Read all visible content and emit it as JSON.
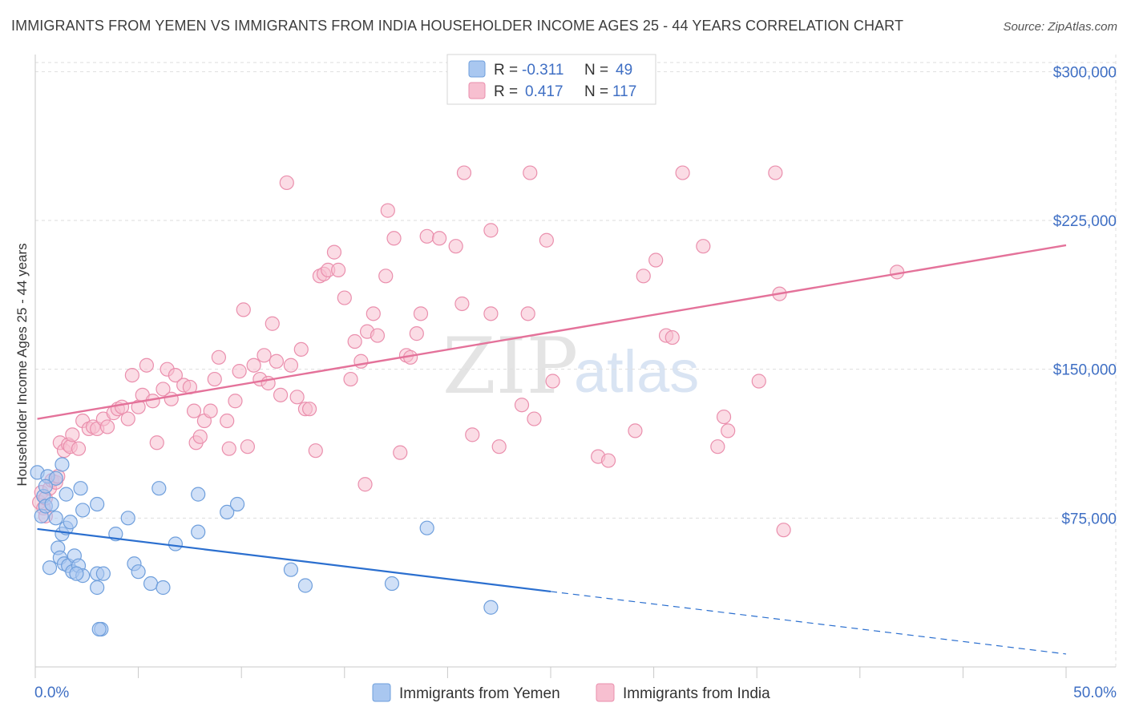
{
  "header": {
    "title": "IMMIGRANTS FROM YEMEN VS IMMIGRANTS FROM INDIA HOUSEHOLDER INCOME AGES 25 - 44 YEARS CORRELATION CHART",
    "source": "Source: ZipAtlas.com"
  },
  "watermark": {
    "zip": "ZIP",
    "atlas": "atlas"
  },
  "legend": {
    "r_label": "R =",
    "n_label": "N =",
    "yemen": {
      "r": "-0.311",
      "n": "49"
    },
    "india": {
      "r": "0.417",
      "n": "117"
    }
  },
  "colors": {
    "yemen_fill": "#a9c7f0",
    "yemen_stroke": "#6f9fdc",
    "yemen_line": "#2b6fcf",
    "india_fill": "#f7bfd0",
    "india_stroke": "#ea8fad",
    "india_line": "#e4729a",
    "grid": "#dedede",
    "tick_label": "#3f6fc4"
  },
  "chart_data": {
    "type": "scatter",
    "title": "IMMIGRANTS FROM YEMEN VS IMMIGRANTS FROM INDIA HOUSEHOLDER INCOME AGES 25 - 44 YEARS CORRELATION CHART",
    "xlabel": "",
    "ylabel": "Householder Income Ages 25 - 44 years",
    "xlim": [
      0,
      50
    ],
    "ylim": [
      0,
      307000
    ],
    "x_tick_labels": [
      "0.0%",
      "50.0%"
    ],
    "y_ticks": [
      75000,
      150000,
      225000,
      300000
    ],
    "y_tick_labels": [
      "$75,000",
      "$150,000",
      "$225,000",
      "$300,000"
    ],
    "grid": true,
    "legend_position": "top-center",
    "series": [
      {
        "name": "Immigrants from Yemen",
        "r": -0.311,
        "n": 49,
        "trend": {
          "x0": 0.1,
          "y0": 69500,
          "x_solid_end": 25.0,
          "y_solid_end": 38000,
          "x1": 50.0,
          "y1": 6500
        },
        "points": [
          [
            0.1,
            98000
          ],
          [
            0.3,
            76000
          ],
          [
            0.4,
            86000
          ],
          [
            0.5,
            81000
          ],
          [
            0.6,
            96000
          ],
          [
            0.8,
            82000
          ],
          [
            1.0,
            95000
          ],
          [
            1.1,
            60000
          ],
          [
            1.2,
            55000
          ],
          [
            1.3,
            67000
          ],
          [
            1.4,
            52000
          ],
          [
            1.5,
            70000
          ],
          [
            1.6,
            51000
          ],
          [
            1.7,
            73000
          ],
          [
            1.8,
            48000
          ],
          [
            1.9,
            56000
          ],
          [
            2.1,
            51000
          ],
          [
            2.2,
            90000
          ],
          [
            2.3,
            46000
          ],
          [
            2.3,
            79000
          ],
          [
            0.7,
            50000
          ],
          [
            1.3,
            102000
          ],
          [
            1.5,
            87000
          ],
          [
            2.0,
            47000
          ],
          [
            3.0,
            82000
          ],
          [
            3.0,
            47000
          ],
          [
            3.0,
            40000
          ],
          [
            3.2,
            19000
          ],
          [
            3.3,
            47000
          ],
          [
            3.9,
            67000
          ],
          [
            4.5,
            75000
          ],
          [
            4.8,
            52000
          ],
          [
            5.0,
            48000
          ],
          [
            5.6,
            42000
          ],
          [
            6.0,
            90000
          ],
          [
            6.2,
            40000
          ],
          [
            6.8,
            62000
          ],
          [
            7.9,
            87000
          ],
          [
            7.9,
            68000
          ],
          [
            9.3,
            78000
          ],
          [
            9.8,
            82000
          ],
          [
            12.4,
            49000
          ],
          [
            13.1,
            41000
          ],
          [
            17.3,
            42000
          ],
          [
            19.0,
            70000
          ],
          [
            22.1,
            30000
          ],
          [
            3.1,
            19000
          ],
          [
            1.0,
            75000
          ],
          [
            0.5,
            91000
          ]
        ]
      },
      {
        "name": "Immigrants from India",
        "r": 0.417,
        "n": 117,
        "trend": {
          "x0": 0.1,
          "y0": 125000,
          "x1": 50.0,
          "y1": 212500
        },
        "points": [
          [
            0.2,
            83000
          ],
          [
            0.3,
            88000
          ],
          [
            0.4,
            80000
          ],
          [
            0.5,
            76000
          ],
          [
            0.5,
            85000
          ],
          [
            0.7,
            90000
          ],
          [
            0.8,
            94000
          ],
          [
            1.0,
            93000
          ],
          [
            1.1,
            96000
          ],
          [
            1.2,
            113000
          ],
          [
            1.4,
            109000
          ],
          [
            1.6,
            112000
          ],
          [
            1.7,
            111000
          ],
          [
            1.8,
            117000
          ],
          [
            2.1,
            110000
          ],
          [
            2.3,
            124000
          ],
          [
            2.6,
            120000
          ],
          [
            2.8,
            121000
          ],
          [
            3.0,
            120000
          ],
          [
            3.3,
            125000
          ],
          [
            3.5,
            121000
          ],
          [
            3.8,
            128000
          ],
          [
            4.0,
            130000
          ],
          [
            4.2,
            131000
          ],
          [
            4.5,
            125000
          ],
          [
            4.7,
            147000
          ],
          [
            5.0,
            131000
          ],
          [
            5.2,
            137000
          ],
          [
            5.4,
            152000
          ],
          [
            5.7,
            134000
          ],
          [
            5.9,
            113000
          ],
          [
            6.2,
            140000
          ],
          [
            6.4,
            150000
          ],
          [
            6.6,
            135000
          ],
          [
            6.8,
            147000
          ],
          [
            7.2,
            142000
          ],
          [
            7.5,
            141000
          ],
          [
            7.7,
            129000
          ],
          [
            7.8,
            113000
          ],
          [
            8.0,
            116000
          ],
          [
            8.2,
            124000
          ],
          [
            8.5,
            129000
          ],
          [
            8.7,
            145000
          ],
          [
            8.9,
            156000
          ],
          [
            9.3,
            124000
          ],
          [
            9.4,
            110000
          ],
          [
            9.7,
            134000
          ],
          [
            9.9,
            149000
          ],
          [
            10.1,
            180000
          ],
          [
            10.3,
            111000
          ],
          [
            10.6,
            152000
          ],
          [
            10.9,
            145000
          ],
          [
            11.1,
            157000
          ],
          [
            11.3,
            143000
          ],
          [
            11.5,
            173000
          ],
          [
            11.7,
            154000
          ],
          [
            11.9,
            137000
          ],
          [
            12.2,
            244000
          ],
          [
            12.4,
            152000
          ],
          [
            12.7,
            136000
          ],
          [
            12.9,
            160000
          ],
          [
            13.1,
            130000
          ],
          [
            13.3,
            130000
          ],
          [
            13.6,
            109000
          ],
          [
            13.8,
            197000
          ],
          [
            14.0,
            198000
          ],
          [
            14.2,
            200000
          ],
          [
            14.5,
            209000
          ],
          [
            14.7,
            200000
          ],
          [
            15.0,
            186000
          ],
          [
            15.3,
            145000
          ],
          [
            15.5,
            164000
          ],
          [
            15.8,
            154000
          ],
          [
            16.1,
            169000
          ],
          [
            16.4,
            178000
          ],
          [
            16.6,
            167000
          ],
          [
            17.0,
            197000
          ],
          [
            17.1,
            230000
          ],
          [
            17.4,
            216000
          ],
          [
            17.7,
            108000
          ],
          [
            18.0,
            157000
          ],
          [
            18.2,
            156000
          ],
          [
            18.5,
            168000
          ],
          [
            18.7,
            178000
          ],
          [
            19.0,
            217000
          ],
          [
            19.6,
            216000
          ],
          [
            20.4,
            212000
          ],
          [
            20.7,
            183000
          ],
          [
            20.8,
            249000
          ],
          [
            21.2,
            117000
          ],
          [
            22.1,
            178000
          ],
          [
            22.1,
            220000
          ],
          [
            22.5,
            111000
          ],
          [
            24.0,
            249000
          ],
          [
            23.9,
            178000
          ],
          [
            23.6,
            132000
          ],
          [
            24.2,
            125000
          ],
          [
            24.8,
            215000
          ],
          [
            25.1,
            144000
          ],
          [
            27.3,
            106000
          ],
          [
            27.8,
            104000
          ],
          [
            29.1,
            119000
          ],
          [
            29.5,
            197000
          ],
          [
            30.1,
            205000
          ],
          [
            30.6,
            167000
          ],
          [
            30.9,
            166000
          ],
          [
            31.4,
            249000
          ],
          [
            32.4,
            212000
          ],
          [
            33.1,
            111000
          ],
          [
            33.4,
            126000
          ],
          [
            33.6,
            119000
          ],
          [
            35.1,
            144000
          ],
          [
            35.9,
            249000
          ],
          [
            36.1,
            188000
          ],
          [
            36.3,
            69000
          ],
          [
            41.8,
            199000
          ],
          [
            16.0,
            92000
          ]
        ]
      }
    ]
  },
  "x_axis": {
    "left_label": "0.0%",
    "right_label": "50.0%"
  },
  "bottom_legend": {
    "yemen": "Immigrants from Yemen",
    "india": "Immigrants from India"
  }
}
